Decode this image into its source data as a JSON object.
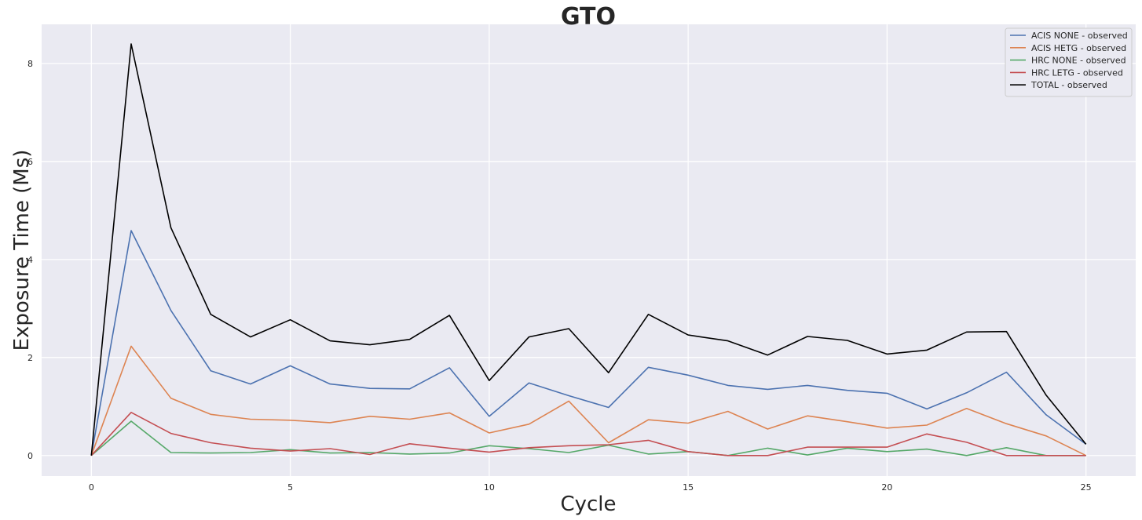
{
  "chart_data": {
    "type": "line",
    "title": "GTO",
    "xlabel": "Cycle",
    "ylabel": "Exposure Time (Ms)",
    "xlim": [
      -1.25,
      26.25
    ],
    "ylim": [
      -0.42,
      8.8
    ],
    "xticks": [
      0,
      5,
      10,
      15,
      20,
      25
    ],
    "yticks": [
      0,
      2,
      4,
      6,
      8
    ],
    "grid": true,
    "legend_position": "top-right",
    "x": [
      0,
      1,
      2,
      3,
      4,
      5,
      6,
      7,
      8,
      9,
      10,
      11,
      12,
      13,
      14,
      15,
      16,
      17,
      18,
      19,
      20,
      21,
      22,
      23,
      24,
      25
    ],
    "series": [
      {
        "name": "ACIS NONE - observed",
        "color": "#4c72b0",
        "values": [
          0,
          4.59,
          2.96,
          1.73,
          1.46,
          1.83,
          1.46,
          1.37,
          1.36,
          1.79,
          0.8,
          1.48,
          1.22,
          0.98,
          1.8,
          1.64,
          1.43,
          1.35,
          1.43,
          1.33,
          1.27,
          0.95,
          1.28,
          1.7,
          0.83,
          0.23
        ]
      },
      {
        "name": "ACIS HETG - observed",
        "color": "#dd8452",
        "values": [
          0,
          2.23,
          1.17,
          0.84,
          0.74,
          0.72,
          0.67,
          0.8,
          0.74,
          0.87,
          0.46,
          0.64,
          1.11,
          0.26,
          0.73,
          0.66,
          0.9,
          0.54,
          0.81,
          0.69,
          0.56,
          0.62,
          0.96,
          0.65,
          0.4,
          0.0
        ]
      },
      {
        "name": "HRC NONE - observed",
        "color": "#55a868",
        "values": [
          0,
          0.7,
          0.06,
          0.05,
          0.06,
          0.12,
          0.05,
          0.06,
          0.03,
          0.05,
          0.2,
          0.14,
          0.06,
          0.21,
          0.03,
          0.08,
          0.0,
          0.15,
          0.01,
          0.15,
          0.08,
          0.13,
          0.0,
          0.16,
          0.0,
          0.0
        ]
      },
      {
        "name": "HRC LETG - observed",
        "color": "#c44e52",
        "values": [
          0,
          0.88,
          0.45,
          0.26,
          0.15,
          0.09,
          0.14,
          0.02,
          0.24,
          0.15,
          0.07,
          0.16,
          0.2,
          0.22,
          0.31,
          0.08,
          0.0,
          0.0,
          0.17,
          0.17,
          0.17,
          0.44,
          0.27,
          0.0,
          0.0,
          0.0
        ]
      },
      {
        "name": "TOTAL - observed",
        "color": "#000000",
        "values": [
          0,
          8.4,
          4.65,
          2.88,
          2.42,
          2.77,
          2.34,
          2.26,
          2.37,
          2.86,
          1.53,
          2.42,
          2.59,
          1.69,
          2.88,
          2.46,
          2.34,
          2.05,
          2.43,
          2.35,
          2.07,
          2.15,
          2.52,
          2.53,
          1.23,
          0.23
        ]
      }
    ]
  }
}
